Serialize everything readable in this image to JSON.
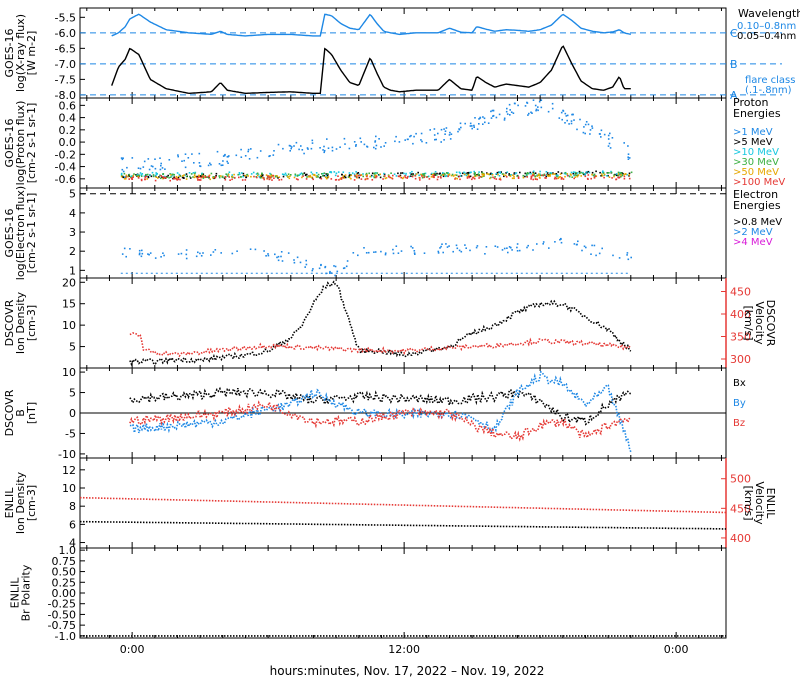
{
  "xaxis": {
    "label": "hours:minutes, Nov. 17, 2022 – Nov. 19, 2022",
    "range_hours": [
      -2.3,
      26.2
    ],
    "ticks": [
      {
        "hours": 0,
        "label": "0:00"
      },
      {
        "hours": 12,
        "label": "12:00"
      },
      {
        "hours": 24,
        "label": "0:00"
      }
    ],
    "minor_step_hours": 1
  },
  "chart_data": [
    {
      "id": "xray",
      "type": "line",
      "ylabel": [
        "GOES-16",
        "log(X-ray flux)",
        "[W m-2]"
      ],
      "ylim": [
        -8.1,
        -5.2
      ],
      "yticks": [
        -8.0,
        -7.5,
        -7.0,
        -6.5,
        -6.0,
        -5.5
      ],
      "ytick_labels": [
        "-8.0",
        "-7.5",
        "-7.0",
        "-6.5",
        "-6.0",
        "-5.5"
      ],
      "reference_lines": [
        {
          "value": -6.0,
          "label": "C"
        },
        {
          "value": -7.0,
          "label": "B"
        },
        {
          "value": -8.0,
          "label": "A"
        }
      ],
      "right_title": "Wavelength",
      "right_note": "flare class\n(.1-.8nm)",
      "series": [
        {
          "name": "0.10–0.8nm",
          "color": "#1e88e5",
          "x": [
            -0.9,
            -0.6,
            -0.3,
            -0.1,
            0.3,
            0.8,
            1.5,
            2.5,
            3.5,
            3.9,
            4.2,
            5.0,
            6.0,
            7.0,
            8.0,
            8.3,
            8.5,
            8.8,
            9.2,
            9.6,
            10.0,
            10.5,
            10.8,
            11.1,
            11.4,
            11.8,
            12.5,
            13.5,
            14.0,
            14.5,
            15.0,
            15.2,
            15.6,
            16.0,
            16.5,
            17.0,
            17.5,
            18.0,
            18.5,
            19.0,
            19.4,
            19.8,
            20.3,
            20.8,
            21.2,
            21.5,
            21.7,
            22.0
          ],
          "y": [
            -6.1,
            -6.0,
            -5.8,
            -5.55,
            -5.4,
            -5.65,
            -5.9,
            -6.0,
            -6.05,
            -5.95,
            -6.05,
            -6.1,
            -6.05,
            -6.05,
            -6.1,
            -6.1,
            -5.4,
            -5.45,
            -5.7,
            -5.85,
            -5.9,
            -5.4,
            -5.7,
            -5.95,
            -6.0,
            -6.05,
            -6.0,
            -6.0,
            -5.85,
            -5.98,
            -6.0,
            -5.8,
            -5.88,
            -5.95,
            -5.9,
            -5.92,
            -5.95,
            -5.9,
            -5.75,
            -5.4,
            -5.6,
            -5.85,
            -5.95,
            -6.0,
            -5.97,
            -5.9,
            -6.0,
            -6.05
          ]
        },
        {
          "name": "0.05–0.4nm",
          "color": "#000000",
          "x": [
            -0.9,
            -0.6,
            -0.3,
            -0.1,
            0.3,
            0.8,
            1.5,
            2.5,
            3.5,
            3.9,
            4.2,
            5.0,
            6.0,
            7.0,
            8.0,
            8.3,
            8.5,
            8.8,
            9.2,
            9.6,
            10.0,
            10.5,
            10.8,
            11.1,
            11.4,
            11.8,
            12.5,
            13.5,
            14.0,
            14.5,
            15.0,
            15.2,
            15.6,
            16.0,
            16.5,
            17.0,
            17.5,
            18.0,
            18.5,
            19.0,
            19.4,
            19.8,
            20.3,
            20.8,
            21.2,
            21.5,
            21.7,
            22.0
          ],
          "y": [
            -7.7,
            -7.1,
            -6.85,
            -6.5,
            -6.7,
            -7.5,
            -7.8,
            -7.95,
            -7.9,
            -7.6,
            -7.85,
            -7.95,
            -7.92,
            -7.9,
            -7.95,
            -7.95,
            -6.5,
            -6.7,
            -7.2,
            -7.6,
            -7.7,
            -6.8,
            -7.3,
            -7.75,
            -7.85,
            -7.9,
            -7.85,
            -7.85,
            -7.5,
            -7.8,
            -7.85,
            -7.4,
            -7.6,
            -7.75,
            -7.65,
            -7.7,
            -7.75,
            -7.6,
            -7.2,
            -6.4,
            -7.0,
            -7.55,
            -7.8,
            -7.85,
            -7.75,
            -7.4,
            -7.8,
            -7.8
          ]
        }
      ]
    },
    {
      "id": "proton",
      "type": "scatter",
      "ylabel": [
        "GOES-16",
        "log(Proton flux)",
        "[cm-2 s-1 sr-1]"
      ],
      "ylim": [
        -0.75,
        0.72
      ],
      "yticks": [
        -0.6,
        -0.4,
        -0.2,
        0.0,
        0.2,
        0.4,
        0.6
      ],
      "ytick_labels": [
        "-0.6",
        "-0.4",
        "-0.2",
        "0.0",
        "0.2",
        "0.4",
        "0.6"
      ],
      "right_title": "Proton\nEnergies",
      "series": [
        {
          "name": ">1 MeV",
          "color": "#1e88e5",
          "x": [
            -0.5,
            2,
            4,
            6,
            8,
            10,
            12,
            14,
            15,
            16,
            17,
            18,
            19,
            20,
            21,
            22
          ],
          "y": [
            -0.35,
            -0.3,
            -0.25,
            -0.15,
            -0.05,
            0.0,
            0.05,
            0.15,
            0.3,
            0.45,
            0.55,
            0.6,
            0.45,
            0.25,
            0.05,
            -0.2
          ]
        },
        {
          "name": ">5 MeV",
          "color": "#000000",
          "x": [
            -0.5,
            22
          ],
          "y": [
            -0.55,
            -0.5
          ]
        },
        {
          "name": ">10 MeV",
          "color": "#17c8e0",
          "x": [
            -0.5,
            22
          ],
          "y": [
            -0.52,
            -0.5
          ]
        },
        {
          "name": ">30 MeV",
          "color": "#3cb043",
          "x": [
            -0.5,
            22
          ],
          "y": [
            -0.54,
            -0.52
          ]
        },
        {
          "name": ">50 MeV",
          "color": "#e6a700",
          "x": [
            -0.5,
            22
          ],
          "y": [
            -0.56,
            -0.54
          ]
        },
        {
          "name": ">100 MeV",
          "color": "#e53935",
          "x": [
            -0.5,
            22
          ],
          "y": [
            -0.58,
            -0.56
          ]
        }
      ]
    },
    {
      "id": "electron",
      "type": "scatter",
      "ylabel": [
        "GOES-16",
        "log(Electron flux)",
        "[cm-2 s-1 sr-1]"
      ],
      "ylim": [
        0.6,
        5.3
      ],
      "yticks": [
        1,
        2,
        3,
        4,
        5
      ],
      "ytick_labels": [
        "1",
        "2",
        "3",
        "4",
        "5"
      ],
      "reference_lines": [
        {
          "value": 5.0,
          "label": ""
        }
      ],
      "right_title": "Electron\nEnergies",
      "series": [
        {
          "name": ">0.8 MeV",
          "color": "#000000",
          "x": [],
          "y": []
        },
        {
          "name": ">2 MeV",
          "color": "#1e88e5",
          "x": [
            -0.5,
            1,
            3,
            5,
            7,
            8,
            9,
            10,
            12,
            14,
            16,
            18,
            19,
            20,
            21,
            22
          ],
          "y": [
            2.0,
            1.8,
            1.9,
            2.0,
            1.7,
            1.2,
            1.0,
            2.0,
            2.1,
            2.2,
            2.1,
            2.3,
            2.6,
            2.2,
            1.9,
            1.8
          ]
        },
        {
          "name": ">4 MeV",
          "color": "#d81bd8",
          "x": [],
          "y": []
        }
      ]
    },
    {
      "id": "dscovr_plasma",
      "type": "line",
      "ylabel": [
        "DSCOVR",
        "Ion Density",
        "[cm-3]"
      ],
      "ylim": [
        0,
        21
      ],
      "yticks": [
        5,
        10,
        15,
        20
      ],
      "ytick_labels": [
        "5",
        "10",
        "15",
        "20"
      ],
      "right_axis": {
        "label": [
          "DSCOVR",
          "Velocity",
          "[km/s]"
        ],
        "ylim": [
          280,
          480
        ],
        "yticks": [
          300,
          350,
          400,
          450
        ],
        "ytick_labels": [
          "300",
          "350",
          "400",
          "450"
        ],
        "color": "#e53935"
      },
      "series": [
        {
          "name": "Ion Density",
          "color": "#000000",
          "axis": "left",
          "x": [
            -0.1,
            1,
            2,
            3,
            4,
            5,
            6,
            7,
            7.5,
            8,
            8.5,
            9,
            9.4,
            10,
            11,
            12,
            13,
            14,
            15,
            16,
            17,
            18,
            19,
            20,
            21,
            22
          ],
          "y": [
            1.5,
            1.5,
            2,
            1.8,
            2.5,
            3,
            4,
            7,
            10,
            15,
            19,
            20,
            14,
            4,
            4,
            3,
            4,
            5,
            8,
            10,
            13,
            15,
            15,
            12,
            9,
            4
          ]
        },
        {
          "name": "Velocity",
          "color": "#e53935",
          "axis": "right",
          "x": [
            -0.1,
            0.4,
            0.5,
            1,
            2,
            4,
            6,
            8,
            10,
            12,
            14,
            16,
            18,
            20,
            21,
            22
          ],
          "y": [
            355,
            350,
            320,
            315,
            310,
            320,
            330,
            325,
            320,
            318,
            325,
            330,
            340,
            335,
            330,
            325
          ]
        }
      ]
    },
    {
      "id": "dscovr_mag",
      "type": "line",
      "ylabel": [
        "DSCOVR",
        "B",
        "[nT]"
      ],
      "ylim": [
        -11,
        11
      ],
      "yticks": [
        -10,
        -5,
        0,
        5,
        10
      ],
      "ytick_labels": [
        "-10",
        "-5",
        "0",
        "5",
        "10"
      ],
      "reference_lines": [
        {
          "value": 0,
          "label": ""
        }
      ],
      "series": [
        {
          "name": "Bx",
          "color": "#000000",
          "x": [
            -0.1,
            2,
            4,
            6,
            7,
            8,
            10,
            12,
            14,
            15,
            16,
            17,
            18,
            19,
            20,
            21,
            22
          ],
          "y": [
            3.5,
            4,
            5,
            5,
            4,
            3,
            4,
            3.5,
            3,
            3.5,
            4,
            5,
            3,
            -1,
            -2,
            2,
            5
          ]
        },
        {
          "name": "By",
          "color": "#1e88e5",
          "x": [
            -0.1,
            2,
            4,
            6,
            7,
            8,
            10,
            12,
            14,
            15,
            16,
            17,
            18,
            19,
            20,
            21,
            22
          ],
          "y": [
            -4,
            -3,
            -2,
            1,
            2,
            5,
            0,
            -0.5,
            0,
            -1,
            -4,
            5,
            9,
            7,
            2,
            6,
            -9
          ]
        },
        {
          "name": "Bz",
          "color": "#e53935",
          "x": [
            -0.1,
            2,
            4,
            6,
            7,
            8,
            10,
            12,
            14,
            15,
            16,
            17,
            18,
            19,
            20,
            21,
            22
          ],
          "y": [
            -2,
            -1,
            0,
            2,
            0,
            -2,
            -2,
            0,
            0,
            -3,
            -5,
            -6,
            -3,
            -2,
            -6,
            -3,
            -1
          ]
        }
      ]
    },
    {
      "id": "enlil",
      "type": "line",
      "ylabel": [
        "ENLIL",
        "Ion Density",
        "[cm-3]"
      ],
      "ylim": [
        3.4,
        13.3
      ],
      "yticks": [
        4,
        6,
        8,
        10,
        12
      ],
      "ytick_labels": [
        "4",
        "6",
        "8",
        "10",
        "12"
      ],
      "right_axis": {
        "label": [
          "ENLIL",
          "Velocity",
          "[km/s]"
        ],
        "ylim": [
          383,
          535
        ],
        "yticks": [
          400,
          450,
          500
        ],
        "ytick_labels": [
          "400",
          "450",
          "500"
        ],
        "color": "#e53935"
      },
      "series": [
        {
          "name": "Ion Density",
          "color": "#000000",
          "axis": "left",
          "x": [
            -2.3,
            26.2
          ],
          "y": [
            6.3,
            5.5
          ]
        },
        {
          "name": "Velocity",
          "color": "#e53935",
          "axis": "right",
          "x": [
            -2.3,
            26.2
          ],
          "y": [
            468,
            443
          ]
        }
      ]
    },
    {
      "id": "enlil_polarity",
      "type": "line",
      "ylabel": [
        "ENLIL",
        "Br Polarity"
      ],
      "ylim": [
        -1.05,
        1.05
      ],
      "yticks": [
        -1.0,
        -0.75,
        -0.5,
        -0.25,
        0.0,
        0.25,
        0.5,
        0.75,
        1.0
      ],
      "ytick_labels": [
        "-1.0",
        "-0.75",
        "-0.50",
        "-0.25",
        "0.00",
        "0.25",
        "0.50",
        "0.75",
        "1.0"
      ],
      "series": [
        {
          "name": "Polarity",
          "color": "#000000",
          "x": [
            -2.3,
            26.2
          ],
          "y": [
            -1.0,
            -1.0
          ]
        }
      ]
    }
  ],
  "legends": {
    "xray": [
      {
        "text": "0.10–0.8nm",
        "color": "#1e88e5"
      },
      {
        "text": "0.05–0.4nm",
        "color": "#000000"
      }
    ],
    "proton": [
      {
        "text": ">1 MeV",
        "color": "#1e88e5"
      },
      {
        "text": ">5 MeV",
        "color": "#000000"
      },
      {
        "text": ">10 MeV",
        "color": "#17c8e0"
      },
      {
        "text": ">30 MeV",
        "color": "#3cb043"
      },
      {
        "text": ">50 MeV",
        "color": "#e6a700"
      },
      {
        "text": ">100 MeV",
        "color": "#e53935"
      }
    ],
    "electron": [
      {
        "text": ">0.8 MeV",
        "color": "#000000"
      },
      {
        "text": ">2 MeV",
        "color": "#1e88e5"
      },
      {
        "text": ">4 MeV",
        "color": "#d81bd8"
      }
    ],
    "mag": [
      {
        "text": "Bx",
        "color": "#000000"
      },
      {
        "text": "By",
        "color": "#1e88e5"
      },
      {
        "text": "Bz",
        "color": "#e53935"
      }
    ]
  }
}
